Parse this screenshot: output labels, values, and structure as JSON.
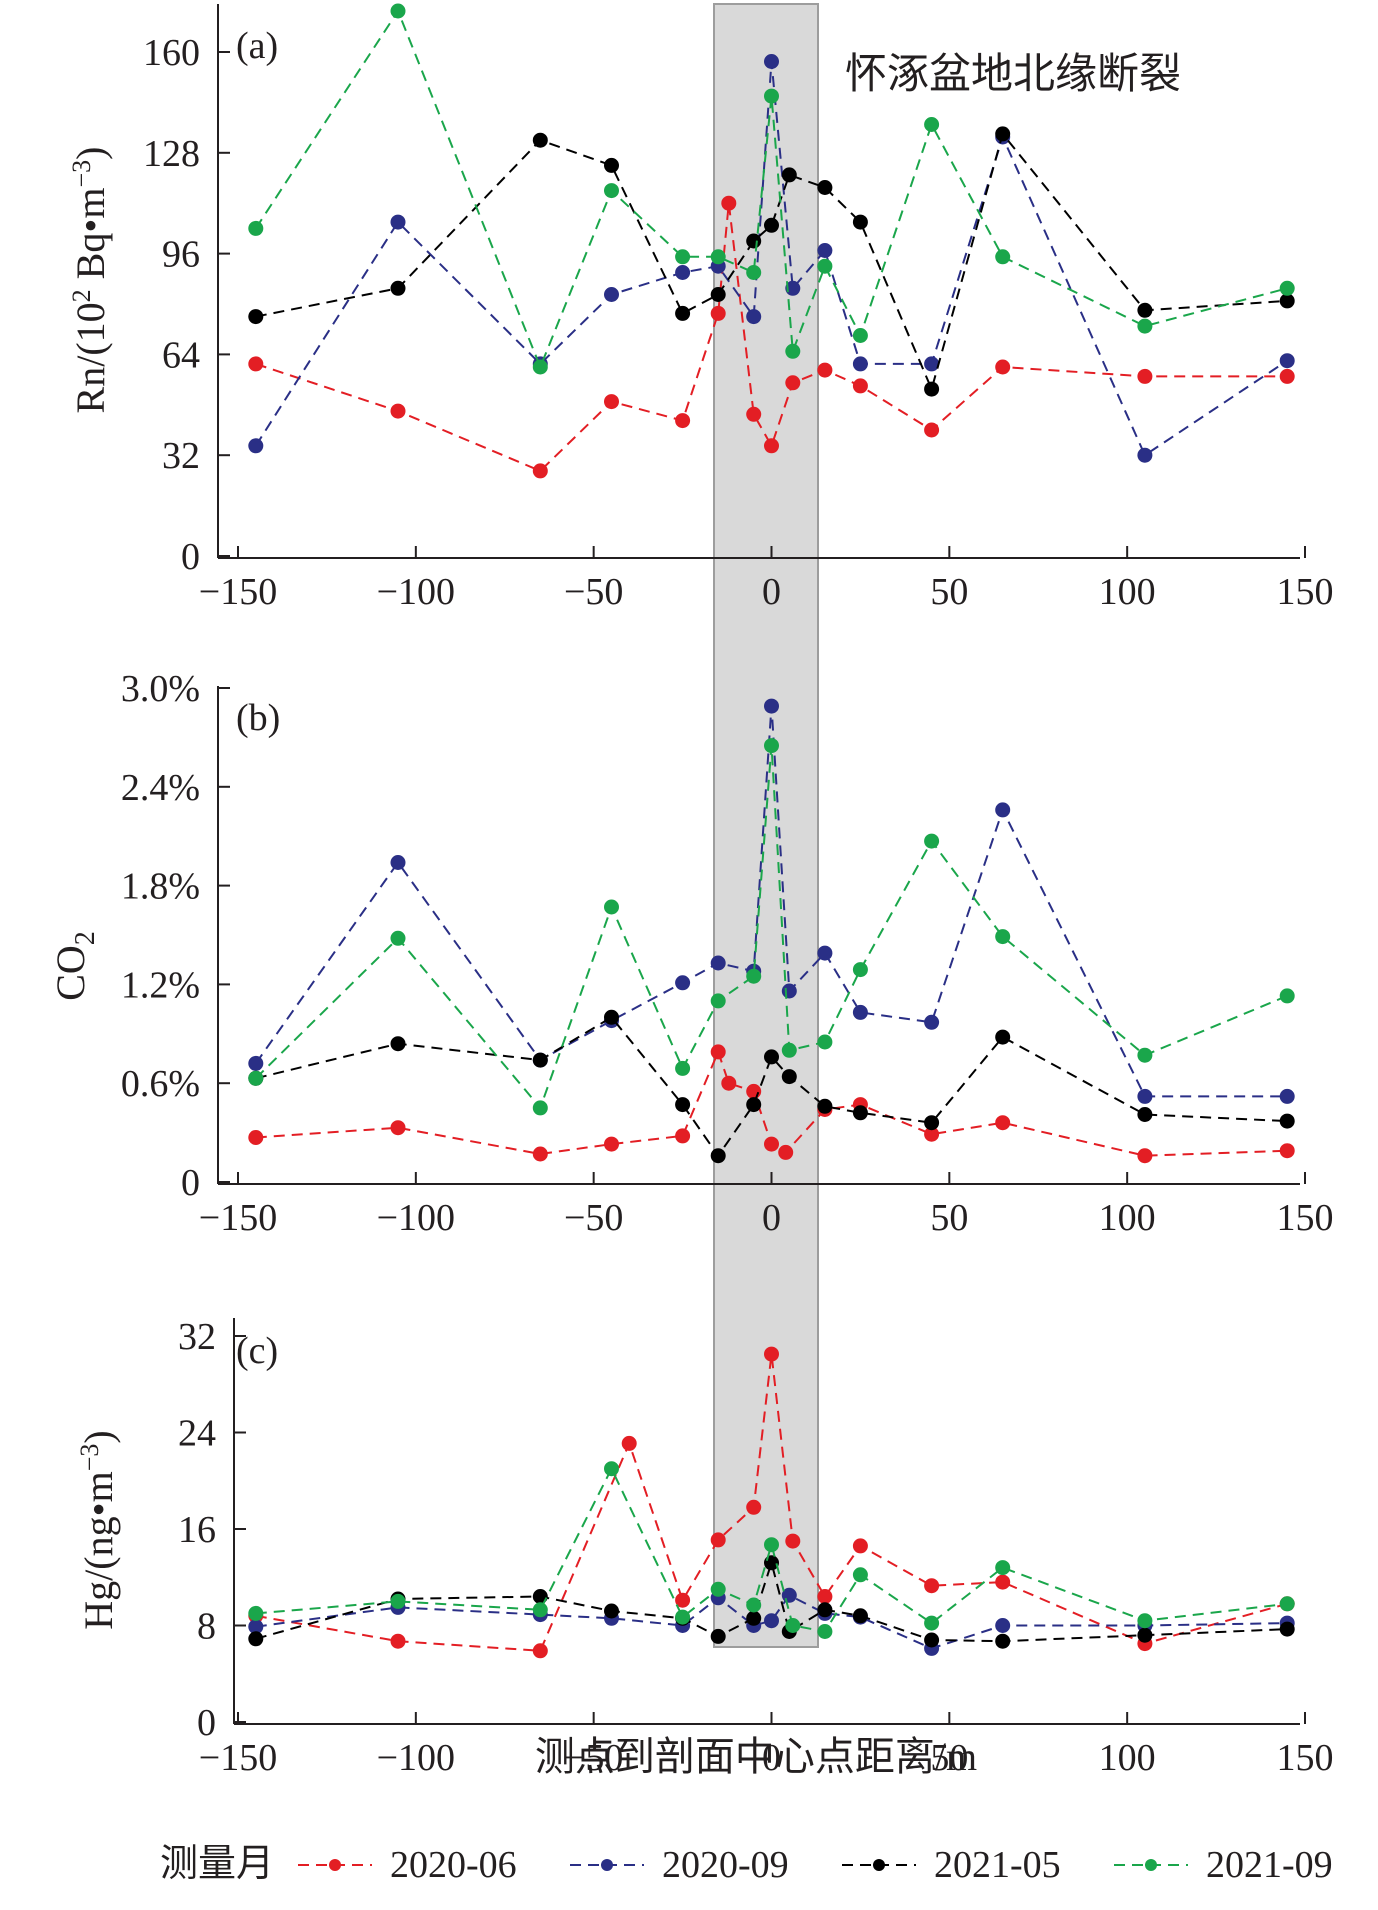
{
  "chart_data": [
    {
      "type": "line",
      "panel_label": "(a)",
      "ylabel": "Rn/(10² Bq•m⁻³)",
      "ylabel_main": "Rn/(10",
      "ylabel_sup": "2",
      "ylabel_tail": " Bq•m",
      "ylabel_sup2": "−3",
      "ylabel_end": ")",
      "ylim": [
        0,
        170
      ],
      "yticks": [
        0,
        32,
        64,
        96,
        128,
        160
      ],
      "ytick_labels": [
        "0",
        "32",
        "64",
        "96",
        "128",
        "160"
      ],
      "xlim": [
        -150,
        150
      ],
      "xticks": [
        -150,
        -100,
        -50,
        0,
        50,
        100,
        150
      ],
      "xtick_labels": [
        "−150",
        "−100",
        "−50",
        "0",
        "50",
        "100",
        "150"
      ],
      "annotation": "怀涿盆地北缘断裂",
      "series": [
        {
          "name": "2020-06",
          "color": "#e31e24",
          "points": [
            [
              -145,
              61
            ],
            [
              -105,
              46
            ],
            [
              -65,
              27
            ],
            [
              -45,
              49
            ],
            [
              -25,
              43
            ],
            [
              -15,
              77
            ],
            [
              -12,
              112
            ],
            [
              -5,
              45
            ],
            [
              0,
              35
            ],
            [
              6,
              55
            ],
            [
              15,
              59
            ],
            [
              25,
              54
            ],
            [
              45,
              40
            ],
            [
              65,
              60
            ],
            [
              105,
              57
            ],
            [
              145,
              57
            ]
          ]
        },
        {
          "name": "2020-09",
          "color": "#2a2f86",
          "points": [
            [
              -145,
              35
            ],
            [
              -105,
              106
            ],
            [
              -65,
              61
            ],
            [
              -45,
              83
            ],
            [
              -25,
              90
            ],
            [
              -15,
              92
            ],
            [
              -5,
              76
            ],
            [
              0,
              157
            ],
            [
              6,
              85
            ],
            [
              15,
              97
            ],
            [
              25,
              61
            ],
            [
              45,
              61
            ],
            [
              65,
              133
            ],
            [
              105,
              32
            ],
            [
              145,
              62
            ]
          ]
        },
        {
          "name": "2021-05",
          "color": "#000000",
          "points": [
            [
              -145,
              76
            ],
            [
              -105,
              85
            ],
            [
              -65,
              132
            ],
            [
              -45,
              124
            ],
            [
              -25,
              77
            ],
            [
              -15,
              83
            ],
            [
              -5,
              100
            ],
            [
              0,
              105
            ],
            [
              5,
              121
            ],
            [
              15,
              117
            ],
            [
              25,
              106
            ],
            [
              45,
              53
            ],
            [
              65,
              134
            ],
            [
              105,
              78
            ],
            [
              145,
              81
            ]
          ]
        },
        {
          "name": "2021-09",
          "color": "#1aa64b",
          "points": [
            [
              -145,
              104
            ],
            [
              -105,
              173
            ],
            [
              -65,
              60
            ],
            [
              -45,
              116
            ],
            [
              -25,
              95
            ],
            [
              -15,
              95
            ],
            [
              -5,
              90
            ],
            [
              0,
              146
            ],
            [
              6,
              65
            ],
            [
              15,
              92
            ],
            [
              25,
              70
            ],
            [
              45,
              137
            ],
            [
              65,
              95
            ],
            [
              105,
              73
            ],
            [
              145,
              85
            ]
          ]
        }
      ]
    },
    {
      "type": "line",
      "panel_label": "(b)",
      "ylabel": "CO₂",
      "ylabel_main": "CO",
      "ylabel_sub": "2",
      "ylim": [
        0,
        3.0
      ],
      "yticks": [
        0,
        0.6,
        1.2,
        1.8,
        2.4,
        3.0
      ],
      "ytick_labels": [
        "0",
        "0.6%",
        "1.2%",
        "1.8%",
        "2.4%",
        "3.0%"
      ],
      "xlim": [
        -150,
        150
      ],
      "xticks": [
        -150,
        -100,
        -50,
        0,
        50,
        100,
        150
      ],
      "xtick_labels": [
        "−150",
        "−100",
        "−50",
        "0",
        "50",
        "100",
        "150"
      ],
      "series": [
        {
          "name": "2020-06",
          "color": "#e31e24",
          "points": [
            [
              -145,
              0.27
            ],
            [
              -105,
              0.33
            ],
            [
              -65,
              0.17
            ],
            [
              -45,
              0.23
            ],
            [
              -25,
              0.28
            ],
            [
              -15,
              0.79
            ],
            [
              -12,
              0.6
            ],
            [
              -5,
              0.55
            ],
            [
              0,
              0.23
            ],
            [
              4,
              0.18
            ],
            [
              15,
              0.44
            ],
            [
              25,
              0.47
            ],
            [
              45,
              0.29
            ],
            [
              65,
              0.36
            ],
            [
              105,
              0.16
            ],
            [
              145,
              0.19
            ]
          ]
        },
        {
          "name": "2020-09",
          "color": "#2a2f86",
          "points": [
            [
              -145,
              0.72
            ],
            [
              -105,
              1.94
            ],
            [
              -65,
              0.74
            ],
            [
              -45,
              0.98
            ],
            [
              -25,
              1.21
            ],
            [
              -15,
              1.33
            ],
            [
              -5,
              1.28
            ],
            [
              0,
              2.89
            ],
            [
              5,
              1.16
            ],
            [
              15,
              1.39
            ],
            [
              25,
              1.03
            ],
            [
              45,
              0.97
            ],
            [
              65,
              2.26
            ],
            [
              105,
              0.52
            ],
            [
              145,
              0.52
            ]
          ]
        },
        {
          "name": "2021-05",
          "color": "#000000",
          "points": [
            [
              -145,
              0.63
            ],
            [
              -105,
              0.84
            ],
            [
              -65,
              0.74
            ],
            [
              -45,
              1.0
            ],
            [
              -25,
              0.47
            ],
            [
              -15,
              0.16
            ],
            [
              -5,
              0.47
            ],
            [
              0,
              0.76
            ],
            [
              5,
              0.64
            ],
            [
              15,
              0.46
            ],
            [
              25,
              0.42
            ],
            [
              45,
              0.36
            ],
            [
              65,
              0.88
            ],
            [
              105,
              0.41
            ],
            [
              145,
              0.37
            ]
          ]
        },
        {
          "name": "2021-09",
          "color": "#1aa64b",
          "points": [
            [
              -145,
              0.63
            ],
            [
              -105,
              1.48
            ],
            [
              -65,
              0.45
            ],
            [
              -45,
              1.67
            ],
            [
              -25,
              0.69
            ],
            [
              -15,
              1.1
            ],
            [
              -5,
              1.25
            ],
            [
              0,
              2.65
            ],
            [
              5,
              0.8
            ],
            [
              15,
              0.85
            ],
            [
              25,
              1.29
            ],
            [
              45,
              2.07
            ],
            [
              65,
              1.49
            ],
            [
              105,
              0.77
            ],
            [
              145,
              1.13
            ]
          ]
        }
      ]
    },
    {
      "type": "line",
      "panel_label": "(c)",
      "ylabel": "Hg/(ng•m⁻³)",
      "ylabel_main": "Hg/(ng•m",
      "ylabel_sup": "−3",
      "ylabel_end": ")",
      "ylim": [
        0,
        32
      ],
      "yticks": [
        0,
        8,
        16,
        24,
        32
      ],
      "ytick_labels": [
        "0",
        "8",
        "16",
        "24",
        "32"
      ],
      "xlim": [
        -150,
        150
      ],
      "xticks": [
        -150,
        -100,
        -50,
        0,
        50,
        100,
        150
      ],
      "xtick_labels": [
        "−150",
        "−100",
        "−50",
        "0",
        "50",
        "100",
        "150"
      ],
      "xlabel": "测点到剖面中心点距离/m",
      "series": [
        {
          "name": "2020-06",
          "color": "#e31e24",
          "points": [
            [
              -145,
              8.8
            ],
            [
              -105,
              6.7
            ],
            [
              -65,
              5.9
            ],
            [
              -40,
              23.1
            ],
            [
              -25,
              10.1
            ],
            [
              -15,
              15.1
            ],
            [
              -5,
              17.8
            ],
            [
              0,
              30.5
            ],
            [
              6,
              15.0
            ],
            [
              15,
              10.4
            ],
            [
              25,
              14.6
            ],
            [
              45,
              11.3
            ],
            [
              65,
              11.6
            ],
            [
              105,
              6.5
            ],
            [
              145,
              9.8
            ]
          ]
        },
        {
          "name": "2020-09",
          "color": "#2a2f86",
          "points": [
            [
              -145,
              7.9
            ],
            [
              -105,
              9.5
            ],
            [
              -65,
              8.9
            ],
            [
              -45,
              8.6
            ],
            [
              -25,
              8.0
            ],
            [
              -15,
              10.3
            ],
            [
              -5,
              8.0
            ],
            [
              0,
              8.4
            ],
            [
              5,
              10.5
            ],
            [
              15,
              9.0
            ],
            [
              25,
              8.7
            ],
            [
              45,
              6.1
            ],
            [
              65,
              8.0
            ],
            [
              105,
              8.0
            ],
            [
              145,
              8.2
            ]
          ]
        },
        {
          "name": "2021-05",
          "color": "#000000",
          "points": [
            [
              -145,
              6.9
            ],
            [
              -105,
              10.2
            ],
            [
              -65,
              10.4
            ],
            [
              -45,
              9.2
            ],
            [
              -25,
              8.6
            ],
            [
              -15,
              7.1
            ],
            [
              -5,
              8.6
            ],
            [
              0,
              13.2
            ],
            [
              5,
              7.5
            ],
            [
              15,
              9.3
            ],
            [
              25,
              8.8
            ],
            [
              45,
              6.8
            ],
            [
              65,
              6.7
            ],
            [
              105,
              7.2
            ],
            [
              145,
              7.7
            ]
          ]
        },
        {
          "name": "2021-09",
          "color": "#1aa64b",
          "points": [
            [
              -145,
              9.0
            ],
            [
              -105,
              10.0
            ],
            [
              -65,
              9.3
            ],
            [
              -45,
              21.0
            ],
            [
              -25,
              8.7
            ],
            [
              -15,
              11.0
            ],
            [
              -5,
              9.7
            ],
            [
              0,
              14.7
            ],
            [
              6,
              8.0
            ],
            [
              15,
              7.5
            ],
            [
              25,
              12.2
            ],
            [
              45,
              8.2
            ],
            [
              65,
              12.8
            ],
            [
              105,
              8.4
            ],
            [
              145,
              9.8
            ]
          ]
        }
      ]
    }
  ],
  "legend": {
    "title": "测量月",
    "items": [
      "2020-06",
      "2020-09",
      "2021-05",
      "2021-09"
    ]
  },
  "colors": {
    "highlight_band_fill": "#d9d9d9",
    "highlight_band_stroke": "#9d9d9d",
    "axis": "#231f20"
  },
  "highlight_band": {
    "x_range": [
      -15,
      15
    ]
  }
}
